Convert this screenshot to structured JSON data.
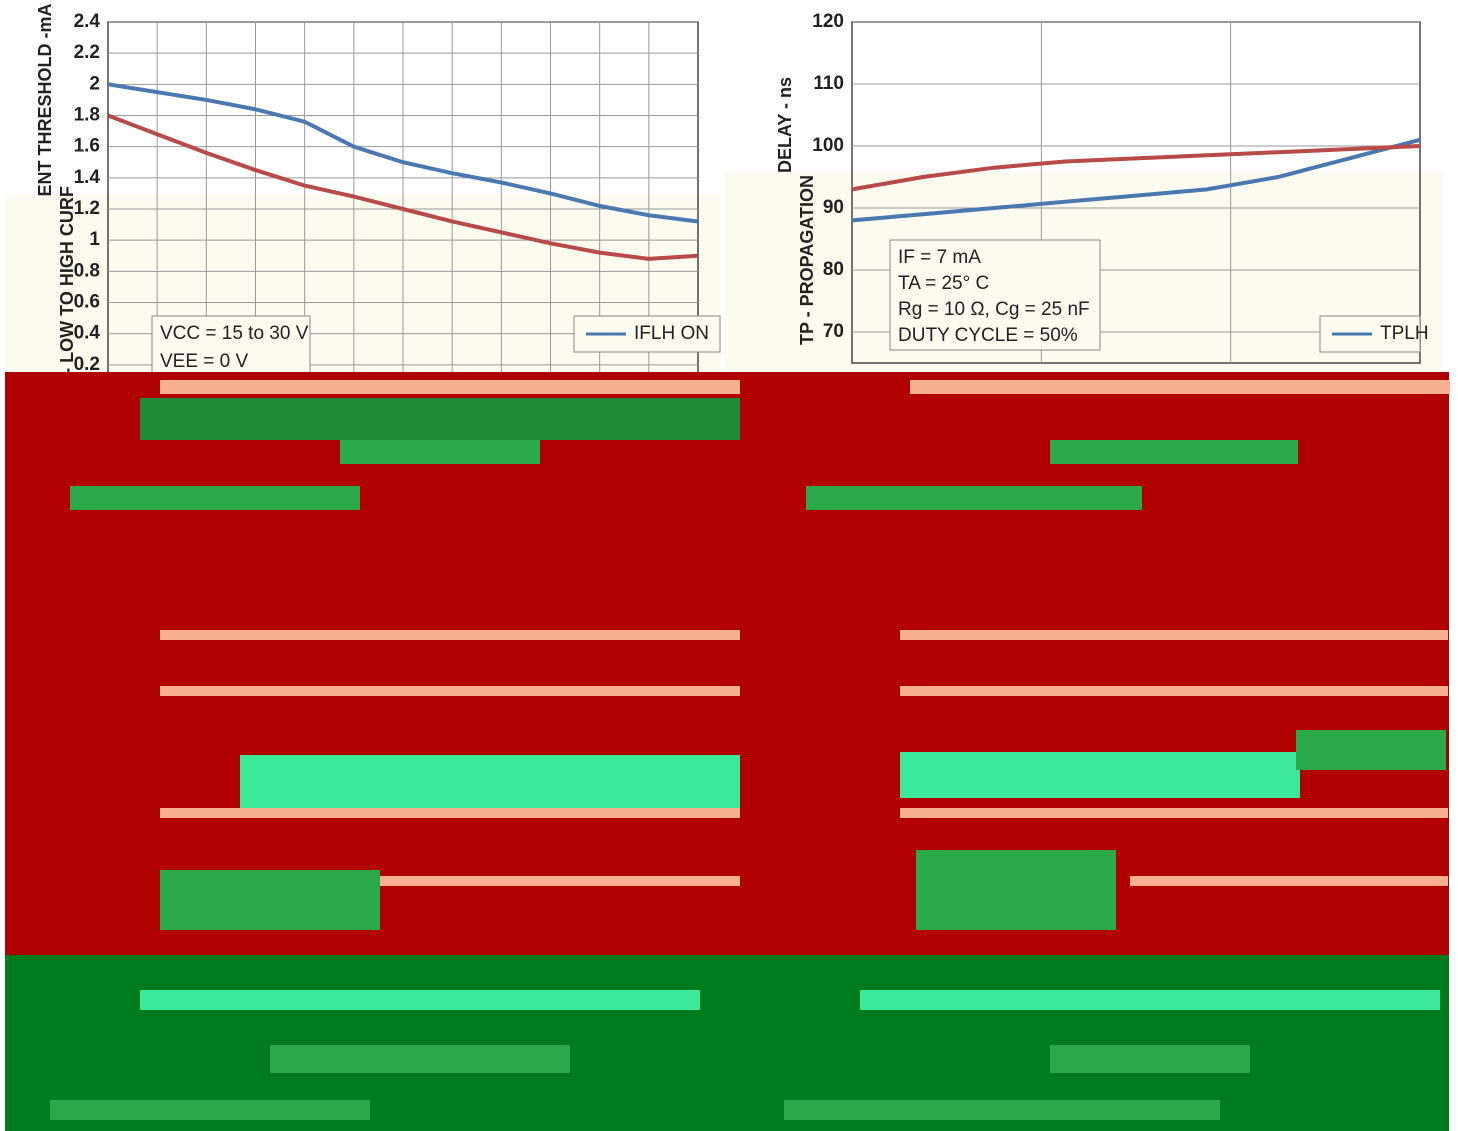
{
  "chart_data": [
    {
      "type": "line",
      "y_label_parts": [
        "ENT THRESHOLD -mA",
        "- LOW TO HIGH CURF"
      ],
      "annotations": [
        "VCC = 15 to 30 V",
        "VEE = 0 V"
      ],
      "ylim": [
        0,
        2.4
      ],
      "yticks": [
        0.2,
        0.4,
        0.6,
        0.8,
        1,
        1.2,
        1.4,
        1.6,
        1.8,
        2,
        2.2,
        2.4
      ],
      "grid": true,
      "series": [
        {
          "name": "IFLH ON",
          "color": "#4a78b0",
          "values": [
            2.0,
            1.95,
            1.9,
            1.84,
            1.76,
            1.6,
            1.5,
            1.43,
            1.37,
            1.3,
            1.22,
            1.16,
            1.12
          ]
        },
        {
          "color": "#b84a48",
          "values": [
            1.8,
            1.68,
            1.56,
            1.45,
            1.35,
            1.28,
            1.2,
            1.12,
            1.05,
            0.98,
            0.92,
            0.88,
            0.9
          ]
        }
      ]
    },
    {
      "type": "line",
      "y_label_parts": [
        "DELAY - ns",
        "TP - PROPAGATION"
      ],
      "annotations": [
        "IF = 7 mA",
        "TA = 25° C",
        "Rg = 10 Ω, Cg = 25 nF",
        "DUTY CYCLE = 50%"
      ],
      "ylim": [
        65,
        120
      ],
      "yticks": [
        70,
        80,
        90,
        100,
        110,
        120
      ],
      "grid": true,
      "series": [
        {
          "name": "TPLH",
          "color": "#4a78b0",
          "values": [
            88,
            89,
            90,
            91,
            92,
            93,
            95,
            98,
            101
          ]
        },
        {
          "color": "#b84a48",
          "values": [
            93,
            95,
            96.5,
            97.5,
            98,
            98.5,
            99,
            99.5,
            100
          ]
        }
      ]
    }
  ]
}
